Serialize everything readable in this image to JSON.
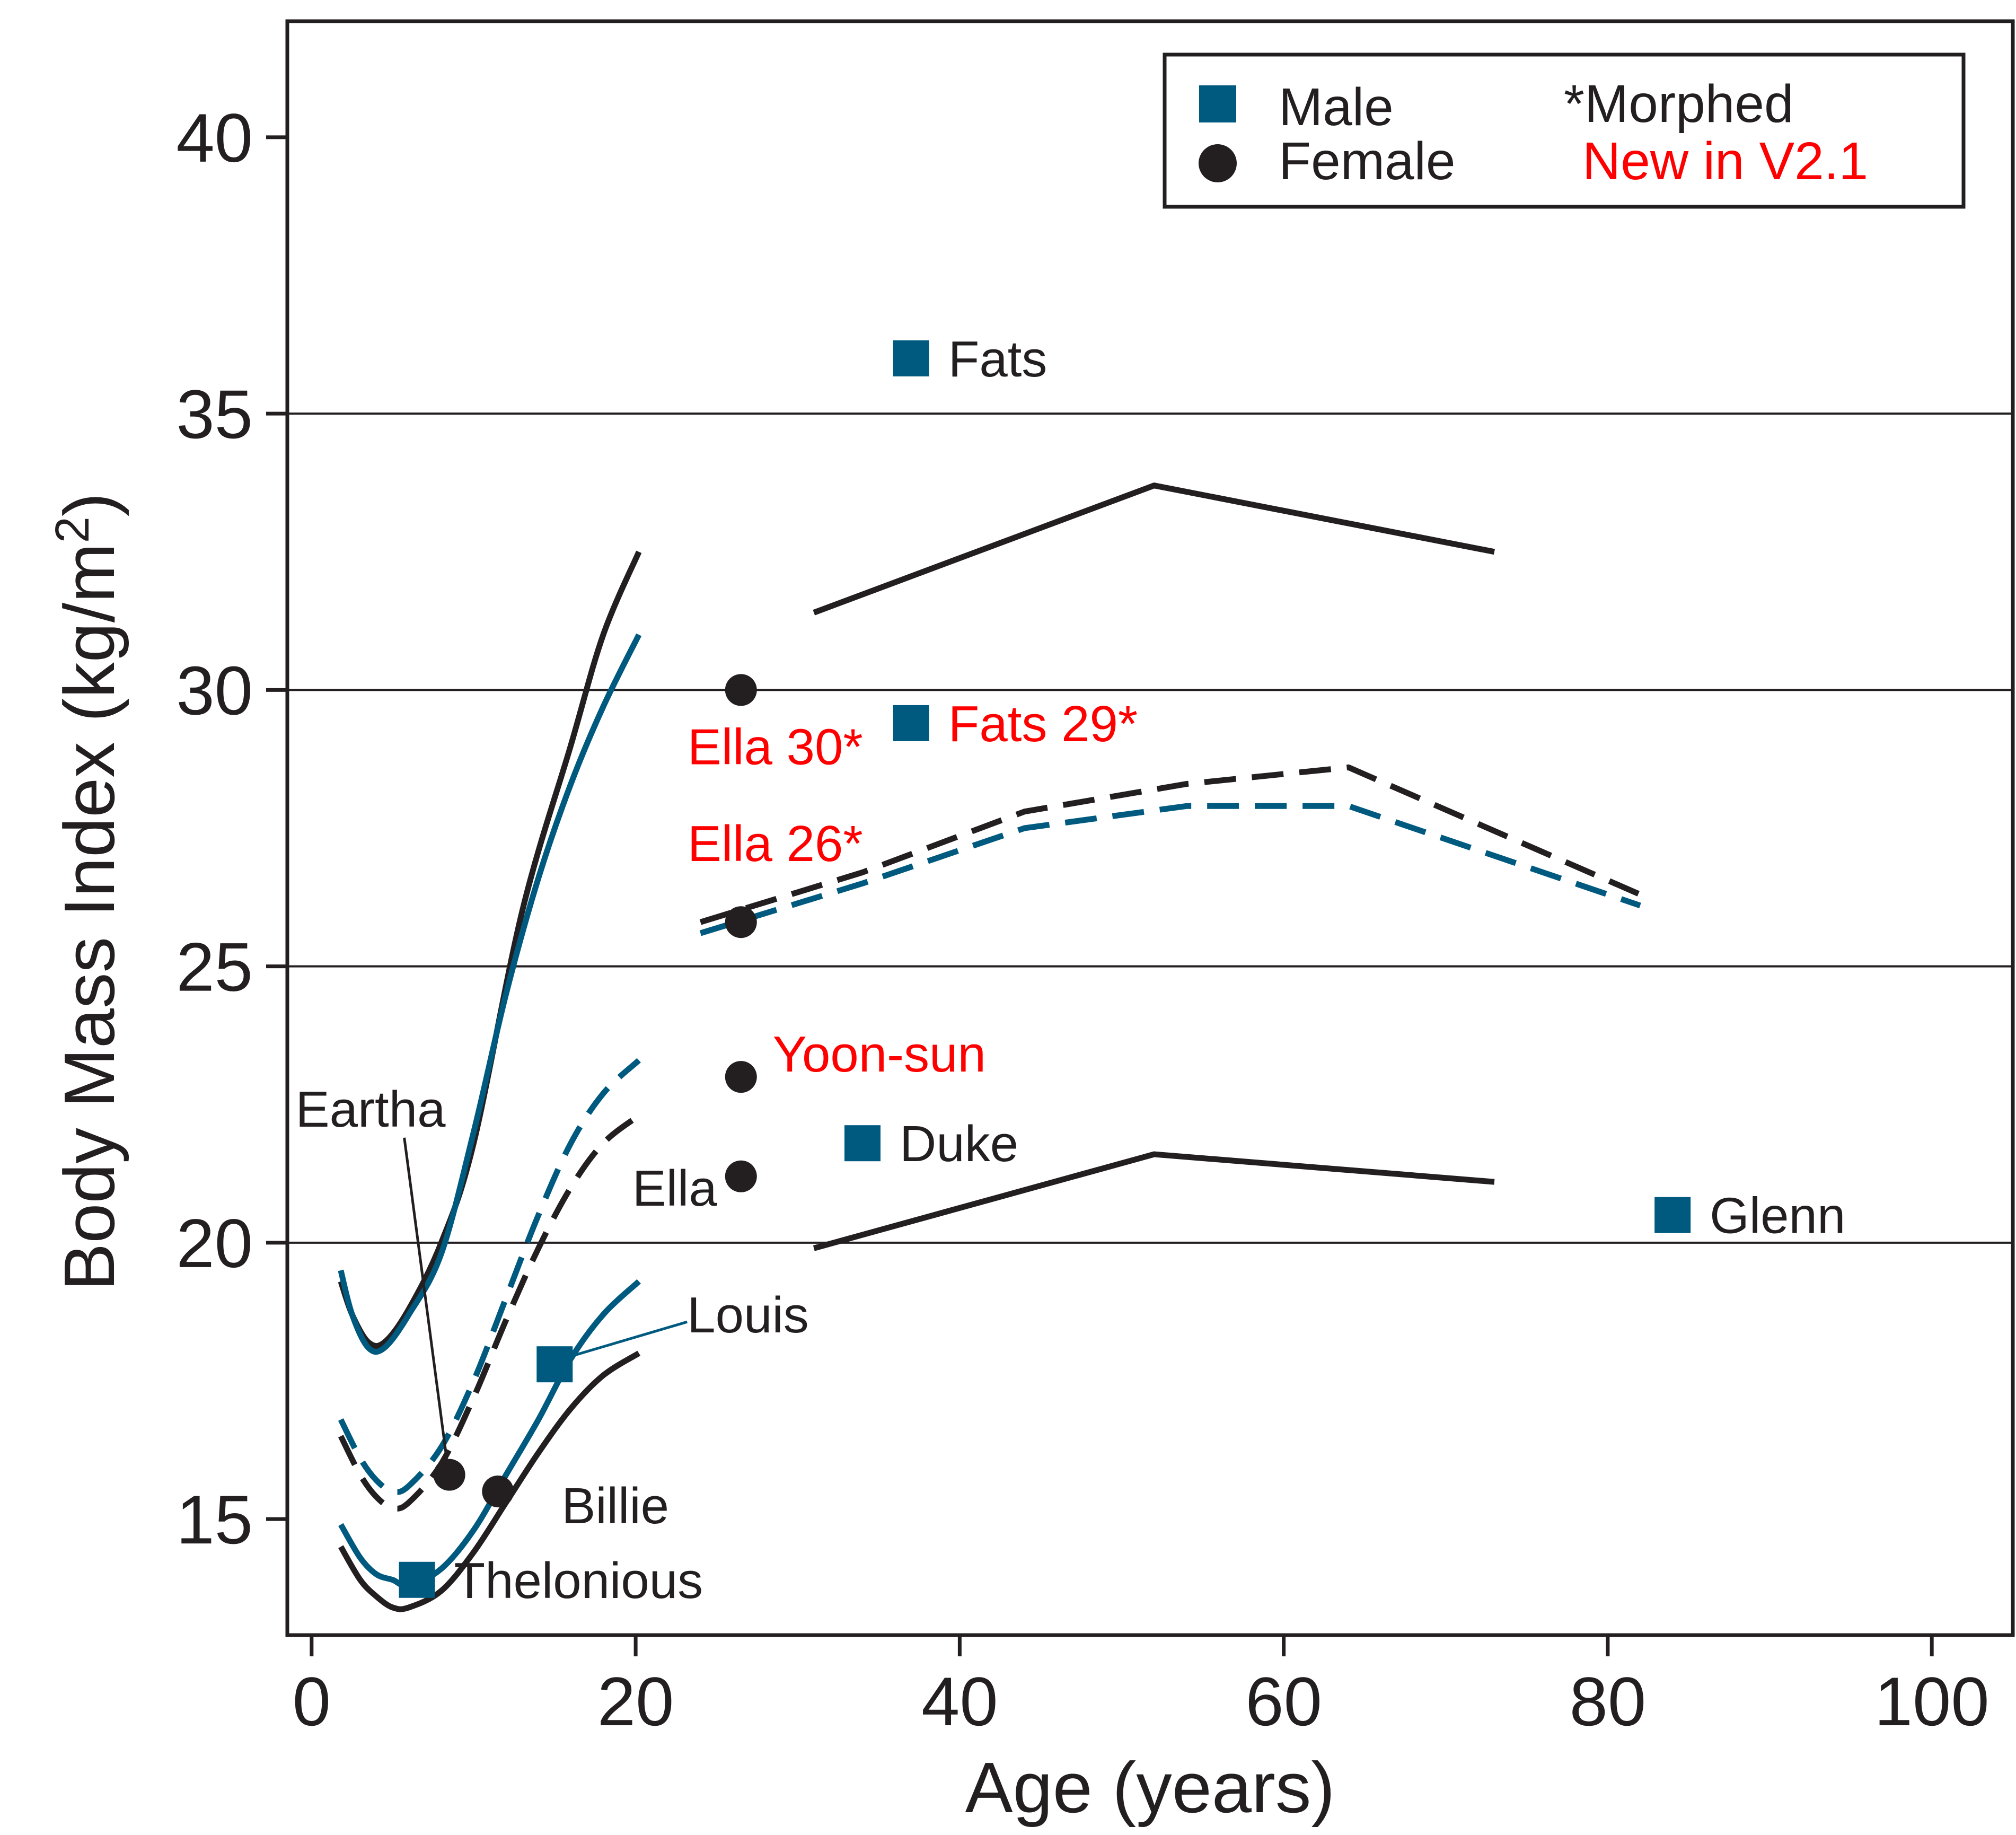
{
  "chart_data": {
    "type": "scatter",
    "xlabel": "Age (years)",
    "ylabel": "Body Mass Index (kg/m",
    "ylabel_sup": "2",
    "ylabel_end": ")",
    "xlim": [
      -1.5,
      105
    ],
    "ylim": [
      12.9,
      42.1
    ],
    "xticks": [
      0,
      20,
      40,
      60,
      80,
      100
    ],
    "yticks": [
      15,
      20,
      25,
      30,
      35,
      40
    ],
    "gridlines_y": [
      20,
      25,
      30,
      35
    ],
    "colors": {
      "male": "#005a7f",
      "female": "#231f20",
      "new": "#ff0000",
      "axis": "#231f20"
    },
    "legend": {
      "placement": "top-right",
      "male": "Male",
      "female": "Female",
      "morphed": "*Morphed",
      "new": "New in V2.1"
    },
    "curves": [
      {
        "name": "female-upper",
        "color": "female",
        "dash": false,
        "points": [
          [
            1.8,
            19.3
          ],
          [
            2.5,
            18.7
          ],
          [
            3.5,
            18.2
          ],
          [
            4.5,
            18.2
          ],
          [
            6,
            18.8
          ],
          [
            8,
            20.0
          ],
          [
            10,
            21.8
          ],
          [
            13,
            26.0
          ],
          [
            16,
            29.0
          ],
          [
            18,
            31.0
          ],
          [
            20.2,
            32.5
          ]
        ]
      },
      {
        "name": "male-upper",
        "color": "male",
        "dash": false,
        "points": [
          [
            1.8,
            19.5
          ],
          [
            2.5,
            18.7
          ],
          [
            3.5,
            18.1
          ],
          [
            4.5,
            18.1
          ],
          [
            6,
            18.7
          ],
          [
            8,
            19.8
          ],
          [
            10,
            22.0
          ],
          [
            12,
            24.5
          ],
          [
            14,
            26.6
          ],
          [
            16,
            28.3
          ],
          [
            18,
            29.7
          ],
          [
            20.2,
            31.0
          ]
        ]
      },
      {
        "name": "male-dashed-child",
        "color": "male",
        "dash": true,
        "points": [
          [
            1.8,
            16.8
          ],
          [
            3,
            16.1
          ],
          [
            4,
            15.7
          ],
          [
            5,
            15.5
          ],
          [
            6,
            15.6
          ],
          [
            8,
            16.3
          ],
          [
            10,
            17.5
          ],
          [
            12,
            19.0
          ],
          [
            14,
            20.5
          ],
          [
            16,
            21.8
          ],
          [
            18,
            22.7
          ],
          [
            20.2,
            23.3
          ]
        ]
      },
      {
        "name": "female-dashed-child",
        "color": "female",
        "dash": true,
        "points": [
          [
            1.8,
            16.5
          ],
          [
            3,
            15.8
          ],
          [
            4,
            15.4
          ],
          [
            5,
            15.2
          ],
          [
            6,
            15.3
          ],
          [
            8,
            16.0
          ],
          [
            10,
            17.2
          ],
          [
            12,
            18.6
          ],
          [
            14,
            19.9
          ],
          [
            16,
            21.0
          ],
          [
            18,
            21.8
          ],
          [
            20.2,
            22.3
          ]
        ]
      },
      {
        "name": "male-lower",
        "color": "male",
        "dash": false,
        "points": [
          [
            1.8,
            14.9
          ],
          [
            3,
            14.3
          ],
          [
            4,
            14.0
          ],
          [
            5,
            13.9
          ],
          [
            6,
            13.8
          ],
          [
            8,
            14.1
          ],
          [
            10,
            14.8
          ],
          [
            12,
            15.8
          ],
          [
            14,
            16.8
          ],
          [
            16,
            17.9
          ],
          [
            18,
            18.7
          ],
          [
            20.2,
            19.3
          ]
        ]
      },
      {
        "name": "female-lower",
        "color": "female",
        "dash": false,
        "points": [
          [
            1.8,
            14.5
          ],
          [
            3,
            13.9
          ],
          [
            4,
            13.6
          ],
          [
            5,
            13.4
          ],
          [
            6,
            13.4
          ],
          [
            8,
            13.7
          ],
          [
            10,
            14.4
          ],
          [
            12,
            15.3
          ],
          [
            14,
            16.2
          ],
          [
            16,
            17.0
          ],
          [
            18,
            17.6
          ],
          [
            20.2,
            18.0
          ]
        ]
      },
      {
        "name": "adult-upper",
        "color": "female",
        "dash": false,
        "points": [
          [
            31,
            31.4
          ],
          [
            52,
            33.7
          ],
          [
            73,
            32.5
          ]
        ]
      },
      {
        "name": "adult-lower",
        "color": "female",
        "dash": false,
        "points": [
          [
            31,
            19.9
          ],
          [
            52,
            21.6
          ],
          [
            73,
            21.1
          ]
        ]
      },
      {
        "name": "adult-dashed-female",
        "color": "female",
        "dash": true,
        "points": [
          [
            24,
            25.8
          ],
          [
            34,
            26.7
          ],
          [
            44,
            27.8
          ],
          [
            54,
            28.3
          ],
          [
            64,
            28.6
          ],
          [
            82,
            26.3
          ]
        ]
      },
      {
        "name": "adult-dashed-male",
        "color": "male",
        "dash": true,
        "points": [
          [
            24,
            25.6
          ],
          [
            34,
            26.5
          ],
          [
            44,
            27.5
          ],
          [
            54,
            27.9
          ],
          [
            64,
            27.9
          ],
          [
            82,
            26.1
          ]
        ]
      }
    ],
    "points": [
      {
        "name": "Fats",
        "x": 37,
        "y": 36.0,
        "sex": "male",
        "label": "Fats",
        "label_anchor": "right",
        "label_color": "female"
      },
      {
        "name": "Fats 29",
        "x": 37,
        "y": 29.4,
        "sex": "male",
        "label": "Fats 29*",
        "label_anchor": "right",
        "label_color": "new"
      },
      {
        "name": "Ella 30",
        "x": 26.5,
        "y": 30.0,
        "sex": "female",
        "label": "Ella 30*",
        "label_anchor": "below-left",
        "label_color": "new"
      },
      {
        "name": "Ella 26",
        "x": 26.5,
        "y": 25.8,
        "sex": "female",
        "label": "Ella 26*",
        "label_anchor": "above-left",
        "label_color": "new"
      },
      {
        "name": "Yoon-sun",
        "x": 26.5,
        "y": 23.0,
        "sex": "female",
        "label": "Yoon-sun",
        "label_anchor": "right-up",
        "label_color": "new"
      },
      {
        "name": "Ella",
        "x": 26.5,
        "y": 21.2,
        "sex": "female",
        "label": "Ella",
        "label_anchor": "left",
        "label_color": "female"
      },
      {
        "name": "Duke",
        "x": 34,
        "y": 21.8,
        "sex": "male",
        "label": "Duke",
        "label_anchor": "right",
        "label_color": "female"
      },
      {
        "name": "Glenn",
        "x": 84,
        "y": 20.5,
        "sex": "male",
        "label": "Glenn",
        "label_anchor": "right",
        "label_color": "female"
      },
      {
        "name": "Louis",
        "x": 15,
        "y": 17.8,
        "sex": "male",
        "label": "Louis",
        "label_anchor": "leader",
        "label_color": "female"
      },
      {
        "name": "Eartha",
        "x": 8.5,
        "y": 15.8,
        "sex": "female",
        "label": "Eartha",
        "label_anchor": "leader",
        "label_color": "female"
      },
      {
        "name": "Billie",
        "x": 11.5,
        "y": 15.5,
        "sex": "female",
        "label": "Billie",
        "label_anchor": "below-right",
        "label_color": "female"
      },
      {
        "name": "Thelonious",
        "x": 6.5,
        "y": 13.9,
        "sex": "male",
        "label": "Thelonious",
        "label_anchor": "right",
        "label_color": "female"
      }
    ]
  }
}
